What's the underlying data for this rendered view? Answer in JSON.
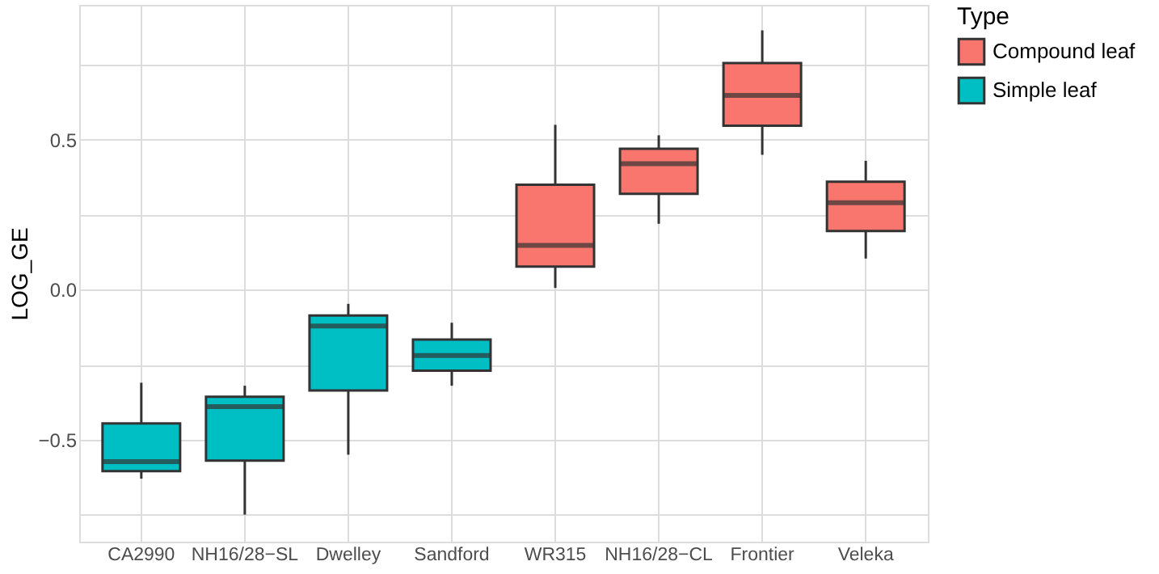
{
  "chart_data": {
    "type": "box",
    "ylabel": "LOG_GE",
    "legend_title": "Type",
    "legend": "right",
    "grid": true,
    "categories": [
      "CA2990",
      "NH16/28−SL",
      "Dwelley",
      "Sandford",
      "WR315",
      "NH16/28−CL",
      "Frontier",
      "Veleka"
    ],
    "ylim": [
      -0.84,
      0.95
    ],
    "yticks": [
      {
        "value": -0.75,
        "label": null
      },
      {
        "value": -0.5,
        "label": "−0.5"
      },
      {
        "value": -0.25,
        "label": null
      },
      {
        "value": 0,
        "label": "0.0"
      },
      {
        "value": 0.25,
        "label": null
      },
      {
        "value": 0.5,
        "label": "0.5"
      },
      {
        "value": 0.75,
        "label": null
      }
    ],
    "series": [
      {
        "name": "Compound leaf",
        "color": "#f8766d",
        "boxes": [
          null,
          null,
          null,
          null,
          {
            "low": 0.006,
            "q1": 0.077,
            "median": 0.148,
            "q3": 0.35,
            "high": 0.55
          },
          {
            "low": 0.22,
            "q1": 0.32,
            "median": 0.42,
            "q3": 0.47,
            "high": 0.515
          },
          {
            "low": 0.45,
            "q1": 0.547,
            "median": 0.648,
            "q3": 0.756,
            "high": 0.865
          },
          {
            "low": 0.104,
            "q1": 0.196,
            "median": 0.29,
            "q3": 0.36,
            "high": 0.43
          }
        ]
      },
      {
        "name": "Simple leaf",
        "color": "#00bfc4",
        "boxes": [
          {
            "low": -0.63,
            "q1": -0.605,
            "median": -0.573,
            "q3": -0.446,
            "high": -0.31
          },
          {
            "low": -0.75,
            "q1": -0.57,
            "median": -0.39,
            "q3": -0.357,
            "high": -0.32
          },
          {
            "low": -0.55,
            "q1": -0.336,
            "median": -0.121,
            "q3": -0.086,
            "high": -0.047
          },
          {
            "low": -0.32,
            "q1": -0.27,
            "median": -0.219,
            "q3": -0.166,
            "high": -0.11
          },
          null,
          null,
          null,
          null
        ]
      }
    ]
  }
}
